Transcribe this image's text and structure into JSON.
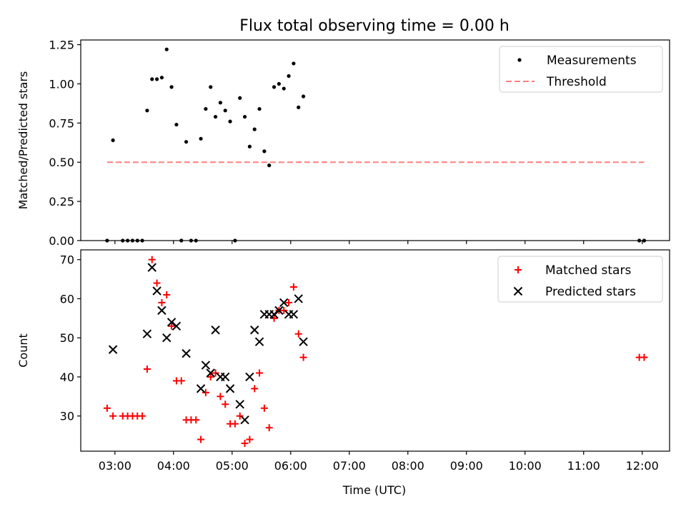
{
  "chart_data": {
    "title": "Flux total observing time = 0.00 h",
    "xlabel": "Time (UTC)",
    "xlim": [
      "02:25",
      "12:28"
    ],
    "xtick_labels": [
      "03:00",
      "04:00",
      "05:00",
      "06:00",
      "07:00",
      "08:00",
      "09:00",
      "10:00",
      "11:00",
      "12:00"
    ],
    "panels": [
      {
        "type": "scatter",
        "ylabel": "Matched/Predicted stars",
        "ylim": [
          0,
          1.28
        ],
        "ytick_labels": [
          "0.00",
          "0.25",
          "0.50",
          "0.75",
          "1.00",
          "1.25"
        ],
        "legend_position": "top-right",
        "series": [
          {
            "name": "Measurements",
            "marker": "dot",
            "color": "#000000",
            "points": [
              [
                "02:52",
                0.0
              ],
              [
                "02:58",
                0.64
              ],
              [
                "03:08",
                0.0
              ],
              [
                "03:13",
                0.0
              ],
              [
                "03:18",
                0.0
              ],
              [
                "03:23",
                0.0
              ],
              [
                "03:28",
                0.0
              ],
              [
                "03:33",
                0.83
              ],
              [
                "03:38",
                1.03
              ],
              [
                "03:43",
                1.03
              ],
              [
                "03:48",
                1.04
              ],
              [
                "03:53",
                1.22
              ],
              [
                "03:58",
                0.98
              ],
              [
                "04:03",
                0.74
              ],
              [
                "04:08",
                0.0
              ],
              [
                "04:13",
                0.63
              ],
              [
                "04:18",
                0.0
              ],
              [
                "04:23",
                0.0
              ],
              [
                "04:28",
                0.65
              ],
              [
                "04:33",
                0.84
              ],
              [
                "04:38",
                0.98
              ],
              [
                "04:43",
                0.79
              ],
              [
                "04:48",
                0.88
              ],
              [
                "04:53",
                0.83
              ],
              [
                "04:58",
                0.76
              ],
              [
                "05:03",
                0.0
              ],
              [
                "05:08",
                0.91
              ],
              [
                "05:13",
                0.79
              ],
              [
                "05:18",
                0.6
              ],
              [
                "05:23",
                0.71
              ],
              [
                "05:28",
                0.84
              ],
              [
                "05:33",
                0.57
              ],
              [
                "05:38",
                0.48
              ],
              [
                "05:43",
                0.98
              ],
              [
                "05:48",
                1.0
              ],
              [
                "05:53",
                0.97
              ],
              [
                "05:58",
                1.05
              ],
              [
                "06:03",
                1.13
              ],
              [
                "06:08",
                0.85
              ],
              [
                "06:13",
                0.92
              ],
              [
                "11:57",
                0.0
              ],
              [
                "12:02",
                0.0
              ]
            ]
          },
          {
            "name": "Threshold",
            "marker": "dashed-line",
            "color": "#ff7f7f",
            "points": [
              [
                "02:52",
                0.5
              ],
              [
                "12:02",
                0.5
              ]
            ]
          }
        ]
      },
      {
        "type": "scatter",
        "ylabel": "Count",
        "ylim": [
          21,
          72.5
        ],
        "ytick_labels": [
          "30",
          "40",
          "50",
          "60",
          "70"
        ],
        "legend_position": "top-right",
        "series": [
          {
            "name": "Matched stars",
            "marker": "plus",
            "color": "#ff0000",
            "points": [
              [
                "02:52",
                32
              ],
              [
                "02:58",
                30
              ],
              [
                "03:08",
                30
              ],
              [
                "03:13",
                30
              ],
              [
                "03:18",
                30
              ],
              [
                "03:23",
                30
              ],
              [
                "03:28",
                30
              ],
              [
                "03:33",
                42
              ],
              [
                "03:38",
                70
              ],
              [
                "03:43",
                64
              ],
              [
                "03:48",
                59
              ],
              [
                "03:53",
                61
              ],
              [
                "03:58",
                53
              ],
              [
                "04:03",
                39
              ],
              [
                "04:08",
                39
              ],
              [
                "04:13",
                29
              ],
              [
                "04:18",
                29
              ],
              [
                "04:23",
                29
              ],
              [
                "04:28",
                24
              ],
              [
                "04:33",
                36
              ],
              [
                "04:38",
                40
              ],
              [
                "04:43",
                41
              ],
              [
                "04:48",
                35
              ],
              [
                "04:53",
                33
              ],
              [
                "04:58",
                28
              ],
              [
                "05:03",
                28
              ],
              [
                "05:08",
                30
              ],
              [
                "05:13",
                23
              ],
              [
                "05:18",
                24
              ],
              [
                "05:23",
                37
              ],
              [
                "05:28",
                41
              ],
              [
                "05:33",
                32
              ],
              [
                "05:38",
                27
              ],
              [
                "05:43",
                55
              ],
              [
                "05:48",
                57
              ],
              [
                "05:53",
                57
              ],
              [
                "05:58",
                59
              ],
              [
                "06:03",
                63
              ],
              [
                "06:08",
                51
              ],
              [
                "06:13",
                45
              ],
              [
                "11:57",
                45
              ],
              [
                "12:02",
                45
              ]
            ]
          },
          {
            "name": "Predicted stars",
            "marker": "x",
            "color": "#000000",
            "points": [
              [
                "02:58",
                47
              ],
              [
                "03:33",
                51
              ],
              [
                "03:38",
                68
              ],
              [
                "03:43",
                62
              ],
              [
                "03:48",
                57
              ],
              [
                "03:53",
                50
              ],
              [
                "03:58",
                54
              ],
              [
                "04:03",
                53
              ],
              [
                "04:13",
                46
              ],
              [
                "04:28",
                37
              ],
              [
                "04:33",
                43
              ],
              [
                "04:38",
                41
              ],
              [
                "04:43",
                52
              ],
              [
                "04:48",
                40
              ],
              [
                "04:53",
                40
              ],
              [
                "04:58",
                37
              ],
              [
                "05:08",
                33
              ],
              [
                "05:13",
                29
              ],
              [
                "05:18",
                40
              ],
              [
                "05:23",
                52
              ],
              [
                "05:28",
                49
              ],
              [
                "05:33",
                56
              ],
              [
                "05:38",
                56
              ],
              [
                "05:43",
                56
              ],
              [
                "05:48",
                57
              ],
              [
                "05:53",
                59
              ],
              [
                "05:58",
                56
              ],
              [
                "06:03",
                56
              ],
              [
                "06:08",
                60
              ],
              [
                "06:13",
                49
              ]
            ]
          }
        ]
      }
    ]
  }
}
